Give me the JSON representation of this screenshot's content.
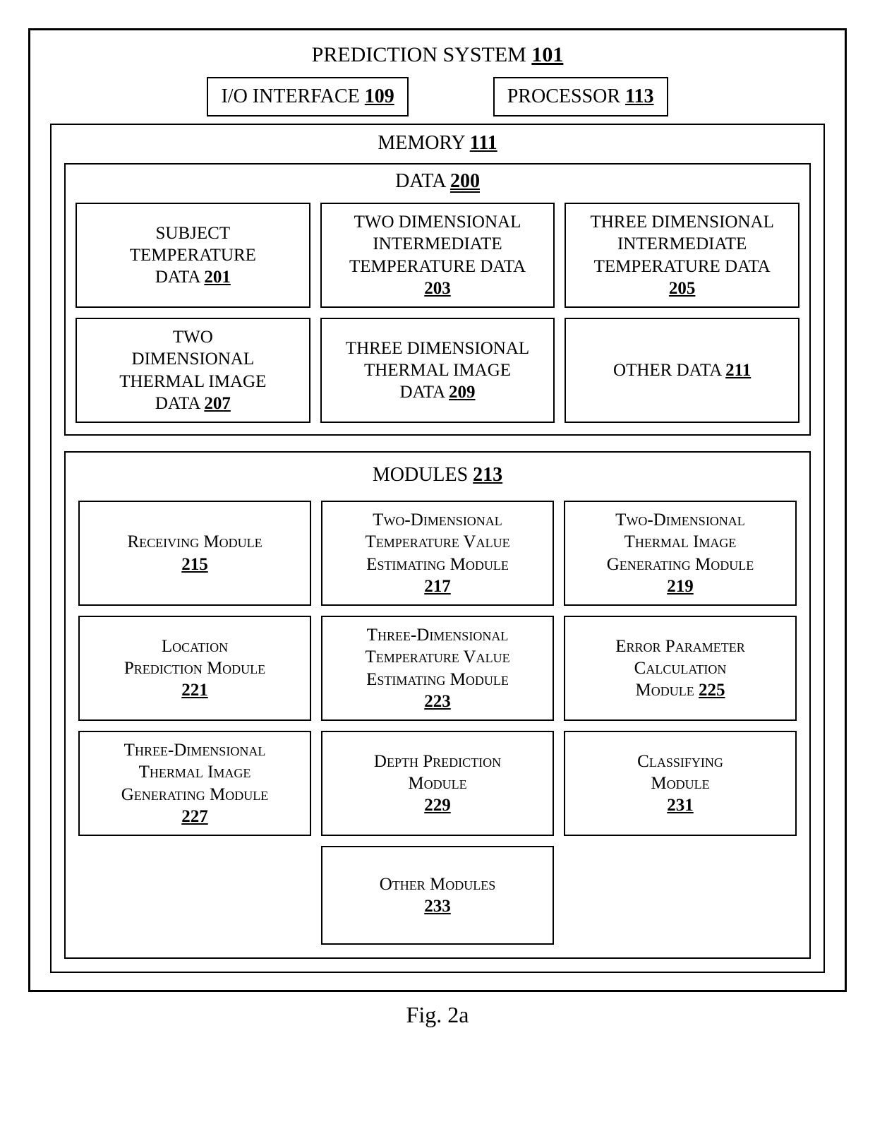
{
  "figure_label": "Fig. 2a",
  "font_family": "Times New Roman",
  "colors": {
    "border": "#000000",
    "background": "#ffffff",
    "text": "#000000"
  },
  "system": {
    "title": "PREDICTION SYSTEM",
    "ref": "101",
    "top": {
      "io": {
        "label": "I/O INTERFACE",
        "ref": "109"
      },
      "proc": {
        "label": "PROCESSOR",
        "ref": "113"
      }
    },
    "memory": {
      "title": "MEMORY",
      "ref": "111",
      "data_section": {
        "title": "DATA",
        "ref": "200",
        "items": [
          {
            "lines": [
              "SUBJECT",
              "TEMPERATURE"
            ],
            "last": "DATA",
            "ref": "201"
          },
          {
            "lines": [
              "TWO DIMENSIONAL",
              "INTERMEDIATE",
              "TEMPERATURE DATA"
            ],
            "ref": "203"
          },
          {
            "lines": [
              "THREE DIMENSIONAL",
              "INTERMEDIATE",
              "TEMPERATURE DATA"
            ],
            "ref": "205"
          },
          {
            "lines": [
              "TWO",
              "DIMENSIONAL",
              "THERMAL IMAGE"
            ],
            "last": "DATA",
            "ref": "207"
          },
          {
            "lines": [
              "THREE DIMENSIONAL",
              "THERMAL IMAGE"
            ],
            "last": "DATA",
            "ref": "209"
          },
          {
            "last": "OTHER DATA",
            "ref": "211"
          }
        ]
      },
      "modules_section": {
        "title": "MODULES",
        "ref": "213",
        "items": [
          {
            "lines": [
              "Receiving Module"
            ],
            "ref": "215",
            "sc": true
          },
          {
            "lines": [
              "Two-Dimensional",
              "Temperature Value",
              "Estimating Module"
            ],
            "ref": "217",
            "sc": true
          },
          {
            "lines": [
              "Two-Dimensional",
              "Thermal Image",
              "Generating  Module"
            ],
            "ref": "219",
            "sc": true
          },
          {
            "lines": [
              "Location",
              "Prediction Module"
            ],
            "ref": "221",
            "sc": true
          },
          {
            "lines": [
              "Three-Dimensional",
              "Temperature Value",
              "Estimating Module"
            ],
            "ref": "223",
            "sc": true
          },
          {
            "lines": [
              "Error Parameter",
              "Calculation"
            ],
            "last": "Module",
            "ref": "225",
            "sc": true
          },
          {
            "lines": [
              "Three-Dimensional",
              "Thermal Image",
              "Generating Module"
            ],
            "ref": "227",
            "sc": true
          },
          {
            "lines": [
              "Depth Prediction",
              "Module"
            ],
            "ref": "229",
            "sc": true
          },
          {
            "lines": [
              "Classifying",
              "Module"
            ],
            "ref": "231",
            "sc": true
          },
          {
            "empty": true
          },
          {
            "lines": [
              "Other Modules"
            ],
            "ref": "233",
            "sc": true
          },
          {
            "empty": true
          }
        ]
      }
    }
  }
}
